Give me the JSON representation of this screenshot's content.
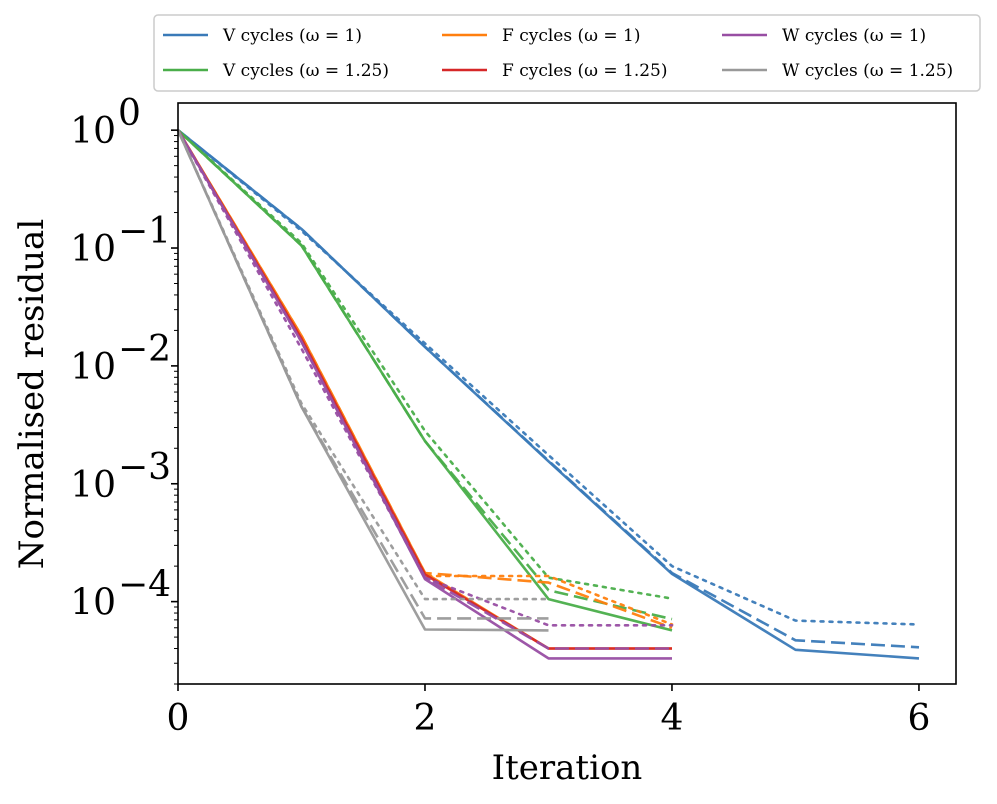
{
  "chart_data": {
    "type": "line",
    "title": "",
    "xlabel": "Iteration",
    "ylabel": "Normalised residual",
    "xlim": [
      0,
      6.3
    ],
    "ylim": [
      2e-05,
      1.7
    ],
    "yscale": "log",
    "x_ticks": [
      {
        "value": 0,
        "label": "0"
      },
      {
        "value": 2,
        "label": "2"
      },
      {
        "value": 4,
        "label": "4"
      },
      {
        "value": 6,
        "label": "6"
      }
    ],
    "y_ticks": [
      {
        "value": 1,
        "base": "10",
        "exp": "0"
      },
      {
        "value": 0.1,
        "base": "10",
        "exp": "−1"
      },
      {
        "value": 0.01,
        "base": "10",
        "exp": "−2"
      },
      {
        "value": 0.001,
        "base": "10",
        "exp": "−3"
      },
      {
        "value": 0.0001,
        "base": "10",
        "exp": "−4"
      }
    ],
    "legend": {
      "position": "top (above plot)",
      "entries": [
        {
          "label": "V cycles (ω = 1)",
          "color": "#3a7ab8"
        },
        {
          "label": "V cycles (ω = 1.25)",
          "color": "#4aae4a"
        },
        {
          "label": "F cycles (ω = 1)",
          "color": "#ff7f0e"
        },
        {
          "label": "F cycles (ω = 1.25)",
          "color": "#d62728"
        },
        {
          "label": "W cycles (ω = 1)",
          "color": "#984ea3"
        },
        {
          "label": "W cycles (ω = 1.25)",
          "color": "#999999"
        }
      ]
    },
    "series": [
      {
        "name": "V cycles (ω = 1) solid",
        "color": "#3a7ab8",
        "dash": "solid",
        "x": [
          0,
          1,
          2,
          3,
          4,
          5,
          6
        ],
        "y": [
          1,
          0.145,
          0.0145,
          0.00155,
          0.000172,
          3.9e-05,
          3.3e-05
        ]
      },
      {
        "name": "V cycles (ω = 1) dashed",
        "color": "#3a7ab8",
        "dash": "dashed",
        "x": [
          0,
          1,
          2,
          3,
          4,
          5,
          6
        ],
        "y": [
          1,
          0.145,
          0.0145,
          0.00157,
          0.000175,
          4.7e-05,
          4.1e-05
        ]
      },
      {
        "name": "V cycles (ω = 1) dotted",
        "color": "#3a7ab8",
        "dash": "dotted",
        "x": [
          0,
          1,
          2,
          3,
          4,
          5,
          6
        ],
        "y": [
          1,
          0.14,
          0.0155,
          0.00175,
          0.0002,
          6.9e-05,
          6.4e-05
        ]
      },
      {
        "name": "V cycles (ω = 1.25) solid",
        "color": "#4aae4a",
        "dash": "solid",
        "x": [
          0,
          1,
          2,
          3,
          4
        ],
        "y": [
          1,
          0.105,
          0.0023,
          0.000105,
          5.7e-05
        ]
      },
      {
        "name": "V cycles (ω = 1.25) dashed",
        "color": "#4aae4a",
        "dash": "dashed",
        "x": [
          0,
          1,
          2,
          3,
          4
        ],
        "y": [
          1,
          0.105,
          0.0023,
          0.000125,
          7.1e-05
        ]
      },
      {
        "name": "V cycles (ω = 1.25) dotted",
        "color": "#4aae4a",
        "dash": "dotted",
        "x": [
          0,
          1,
          2,
          3,
          4
        ],
        "y": [
          1,
          0.11,
          0.0028,
          0.00016,
          0.000106
        ]
      },
      {
        "name": "F cycles (ω = 1) solid",
        "color": "#ff7f0e",
        "dash": "solid",
        "x": [
          0,
          1,
          2,
          3,
          4
        ],
        "y": [
          1,
          0.018,
          0.000175,
          4e-05,
          4e-05
        ]
      },
      {
        "name": "F cycles (ω = 1) dashed",
        "color": "#ff7f0e",
        "dash": "dashed",
        "x": [
          0,
          1,
          2,
          3,
          4
        ],
        "y": [
          1,
          0.018,
          0.000175,
          0.000145,
          6e-05
        ]
      },
      {
        "name": "F cycles (ω = 1) dotted",
        "color": "#ff7f0e",
        "dash": "dotted",
        "x": [
          0,
          1,
          2,
          3,
          4
        ],
        "y": [
          1,
          0.017,
          0.000165,
          0.000165,
          6.4e-05
        ]
      },
      {
        "name": "F cycles (ω = 1.25) solid",
        "color": "#d62728",
        "dash": "solid",
        "x": [
          0,
          1,
          2,
          3,
          4
        ],
        "y": [
          1,
          0.017,
          0.00017,
          4e-05,
          4e-05
        ]
      },
      {
        "name": "W cycles (ω = 1) solid",
        "color": "#984ea3",
        "dash": "solid",
        "x": [
          0,
          1,
          2,
          3,
          4
        ],
        "y": [
          1,
          0.016,
          0.000155,
          3.3e-05,
          3.3e-05
        ]
      },
      {
        "name": "W cycles (ω = 1) dashed",
        "color": "#984ea3",
        "dash": "dashed",
        "x": [
          0,
          1,
          2,
          3,
          4
        ],
        "y": [
          1,
          0.016,
          0.00016,
          4e-05,
          4e-05
        ]
      },
      {
        "name": "W cycles (ω = 1) dotted",
        "color": "#984ea3",
        "dash": "dotted",
        "x": [
          0,
          1,
          2,
          3,
          4
        ],
        "y": [
          1,
          0.014,
          0.00016,
          6.3e-05,
          6.3e-05
        ]
      },
      {
        "name": "W cycles (ω = 1.25) solid",
        "color": "#999999",
        "dash": "solid",
        "x": [
          0,
          1,
          2,
          3
        ],
        "y": [
          1,
          0.0045,
          5.8e-05,
          5.7e-05
        ]
      },
      {
        "name": "W cycles (ω = 1.25) dashed",
        "color": "#999999",
        "dash": "dashed",
        "x": [
          0,
          1,
          2,
          3
        ],
        "y": [
          1,
          0.0045,
          7.2e-05,
          7.2e-05
        ]
      },
      {
        "name": "W cycles (ω = 1.25) dotted",
        "color": "#999999",
        "dash": "dotted",
        "x": [
          0,
          1,
          2,
          3
        ],
        "y": [
          1,
          0.0048,
          0.000105,
          0.000105
        ]
      }
    ]
  }
}
